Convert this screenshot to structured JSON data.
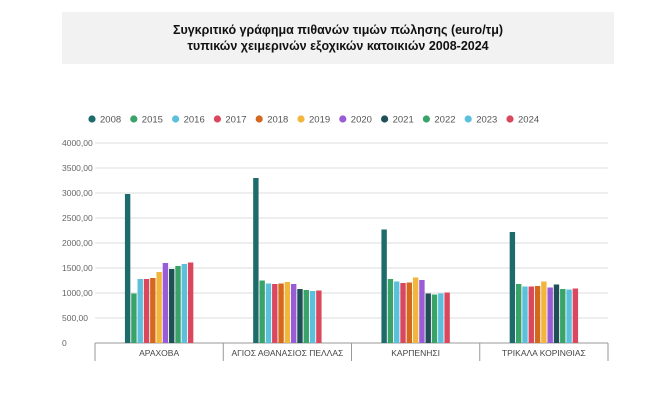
{
  "title_line1": "Συγκριτικό γράφημα πιθανών τιμών πώλησης (euro/τμ)",
  "title_line2": "τυπικών χειμερινών εξοχικών κατοικιών 2008-2024",
  "chart_data": {
    "type": "bar",
    "title": "Συγκριτικό γράφημα πιθανών τιμών πώλησης (euro/τμ) τυπικών χειμερινών εξοχικών κατοικιών 2008-2024",
    "categories": [
      "ΑΡΑΧΟΒΑ",
      "ΑΓΙΟΣ ΑΘΑΝΑΣΙΟΣ ΠΕΛΛΑΣ",
      "ΚΑΡΠΕΝΗΣΙ",
      "ΤΡΙΚΑΛΑ ΚΟΡΙΝΘΙΑΣ"
    ],
    "ylim": [
      0,
      4000
    ],
    "yticks": [
      "0",
      "500,00",
      "1000,00",
      "1500,00",
      "2000,00",
      "2500,00",
      "3000,00",
      "3500,00",
      "4000,00"
    ],
    "ytick_values": [
      0,
      500,
      1000,
      1500,
      2000,
      2500,
      3000,
      3500,
      4000
    ],
    "grid": true,
    "legend_position": "top",
    "series": [
      {
        "name": "2008",
        "color": "#1d6b6b",
        "values": [
          2980,
          3300,
          2270,
          2220
        ]
      },
      {
        "name": "2015",
        "color": "#3aa36a",
        "values": [
          990,
          1250,
          1280,
          1180
        ]
      },
      {
        "name": "2016",
        "color": "#5cc0dc",
        "values": [
          1280,
          1190,
          1230,
          1130
        ]
      },
      {
        "name": "2017",
        "color": "#d9485f",
        "values": [
          1280,
          1180,
          1200,
          1130
        ]
      },
      {
        "name": "2018",
        "color": "#d4691e",
        "values": [
          1300,
          1190,
          1210,
          1140
        ]
      },
      {
        "name": "2019",
        "color": "#f2b63c",
        "values": [
          1420,
          1220,
          1310,
          1230
        ]
      },
      {
        "name": "2020",
        "color": "#9a5bd6",
        "values": [
          1600,
          1180,
          1260,
          1110
        ]
      },
      {
        "name": "2021",
        "color": "#1f4f57",
        "values": [
          1480,
          1080,
          990,
          1170
        ]
      },
      {
        "name": "2022",
        "color": "#3aa36a",
        "values": [
          1540,
          1060,
          970,
          1080
        ]
      },
      {
        "name": "2023",
        "color": "#5cc0dc",
        "values": [
          1580,
          1040,
          990,
          1070
        ]
      },
      {
        "name": "2024",
        "color": "#d9485f",
        "values": [
          1610,
          1050,
          1010,
          1090
        ]
      }
    ]
  }
}
